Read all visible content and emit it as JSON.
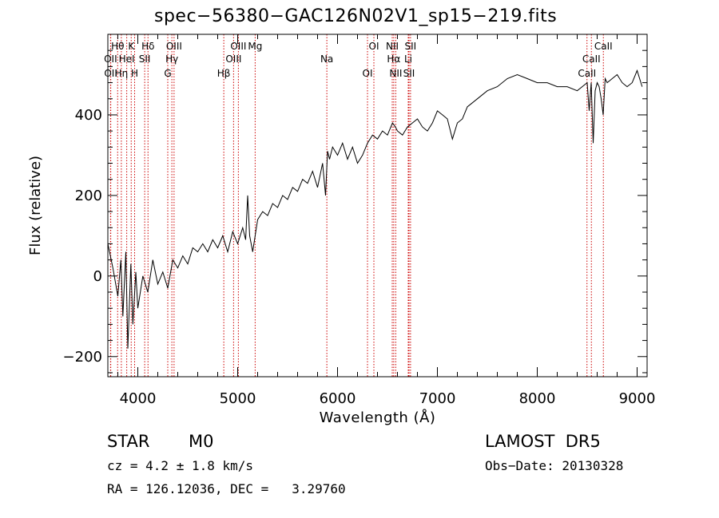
{
  "chart_data": {
    "type": "line",
    "title": "spec−56380−GAC126N02V1_sp15−219.fits",
    "xlabel": "Wavelength (Å)",
    "ylabel": "Flux (relative)",
    "xlim": [
      3700,
      9100
    ],
    "ylim": [
      -250,
      600
    ],
    "x_ticks": [
      4000,
      5000,
      6000,
      7000,
      8000,
      9000
    ],
    "x_tick_labels": [
      "4000",
      "5000",
      "6000",
      "7000",
      "8000",
      "9000"
    ],
    "y_ticks": [
      -200,
      0,
      200,
      400
    ],
    "y_tick_labels": [
      "−200",
      "0",
      "200",
      "400"
    ],
    "grid": false,
    "series": [
      {
        "color": "#000000",
        "x": [
          3700,
          3750,
          3800,
          3830,
          3850,
          3880,
          3900,
          3930,
          3950,
          3980,
          4000,
          4050,
          4100,
          4150,
          4200,
          4250,
          4300,
          4350,
          4400,
          4450,
          4500,
          4550,
          4600,
          4650,
          4700,
          4750,
          4800,
          4850,
          4900,
          4950,
          5000,
          5050,
          5080,
          5100,
          5120,
          5150,
          5200,
          5250,
          5300,
          5350,
          5400,
          5450,
          5500,
          5550,
          5600,
          5650,
          5700,
          5750,
          5800,
          5850,
          5880,
          5900,
          5920,
          5950,
          6000,
          6050,
          6100,
          6150,
          6200,
          6250,
          6300,
          6350,
          6400,
          6450,
          6500,
          6550,
          6580,
          6600,
          6650,
          6700,
          6750,
          6800,
          6850,
          6900,
          6950,
          7000,
          7050,
          7100,
          7150,
          7200,
          7250,
          7300,
          7350,
          7400,
          7500,
          7600,
          7700,
          7800,
          7900,
          8000,
          8100,
          8200,
          8300,
          8400,
          8450,
          8500,
          8520,
          8540,
          8560,
          8580,
          8600,
          8620,
          8640,
          8660,
          8680,
          8700,
          8750,
          8800,
          8850,
          8900,
          8950,
          9000,
          9050
        ],
        "y": [
          80,
          20,
          -50,
          40,
          -100,
          60,
          -180,
          30,
          -120,
          10,
          -80,
          0,
          -40,
          40,
          -20,
          10,
          -30,
          40,
          20,
          50,
          30,
          70,
          60,
          80,
          60,
          90,
          70,
          100,
          60,
          110,
          80,
          120,
          90,
          200,
          100,
          60,
          140,
          160,
          150,
          180,
          170,
          200,
          190,
          220,
          210,
          240,
          230,
          260,
          220,
          280,
          200,
          310,
          290,
          320,
          300,
          330,
          290,
          320,
          280,
          300,
          330,
          350,
          340,
          360,
          350,
          380,
          370,
          360,
          350,
          370,
          380,
          390,
          370,
          360,
          380,
          410,
          400,
          390,
          340,
          380,
          390,
          420,
          430,
          440,
          460,
          470,
          490,
          500,
          490,
          480,
          480,
          470,
          470,
          460,
          470,
          480,
          410,
          480,
          330,
          460,
          480,
          470,
          440,
          400,
          490,
          480,
          490,
          500,
          480,
          470,
          480,
          510,
          470
        ]
      }
    ],
    "line_labels": [
      {
        "text": "Hθ",
        "x": 3798
      },
      {
        "text": "OII",
        "x": 3727
      },
      {
        "text": "OII",
        "x": 3729
      },
      {
        "text": "K",
        "x": 3934
      },
      {
        "text": "HeI",
        "x": 3889
      },
      {
        "text": "Hη",
        "x": 3835
      },
      {
        "text": "Hδ",
        "x": 4102
      },
      {
        "text": "SII",
        "x": 4069
      },
      {
        "text": "H",
        "x": 3968
      },
      {
        "text": "OIII",
        "x": 4363
      },
      {
        "text": "Hγ",
        "x": 4341
      },
      {
        "text": "G",
        "x": 4300
      },
      {
        "text": "OIII",
        "x": 5007
      },
      {
        "text": "OIII",
        "x": 4959
      },
      {
        "text": "Hβ",
        "x": 4861
      },
      {
        "text": "Mg",
        "x": 5175
      },
      {
        "text": "Na",
        "x": 5893
      },
      {
        "text": "OI",
        "x": 6300
      },
      {
        "text": "OI",
        "x": 6364
      },
      {
        "text": "Hα",
        "x": 6563
      },
      {
        "text": "SII",
        "x": 6716
      },
      {
        "text": "NII",
        "x": 6548
      },
      {
        "text": "Li",
        "x": 6708
      },
      {
        "text": "NII",
        "x": 6583
      },
      {
        "text": "SII",
        "x": 6731
      },
      {
        "text": "CaII",
        "x": 8542
      },
      {
        "text": "CaII",
        "x": 8498
      },
      {
        "text": "CaII",
        "x": 8662
      }
    ],
    "line_marker_x": [
      3727,
      3729,
      3798,
      3835,
      3889,
      3934,
      3968,
      4069,
      4102,
      4300,
      4341,
      4363,
      4861,
      4959,
      5007,
      5175,
      5893,
      6300,
      6364,
      6548,
      6563,
      6583,
      6708,
      6716,
      6731,
      8498,
      8542,
      8662
    ],
    "line_color": "#cc0000"
  },
  "info": {
    "object_type": "STAR",
    "subclass": "M0",
    "cz": "cz = 4.2 ± 1.8 km/s",
    "coords": "RA = 126.12036, DEC =   3.29760",
    "survey": "LAMOST  DR5",
    "obs_date": "Obs−Date: 20130328"
  }
}
